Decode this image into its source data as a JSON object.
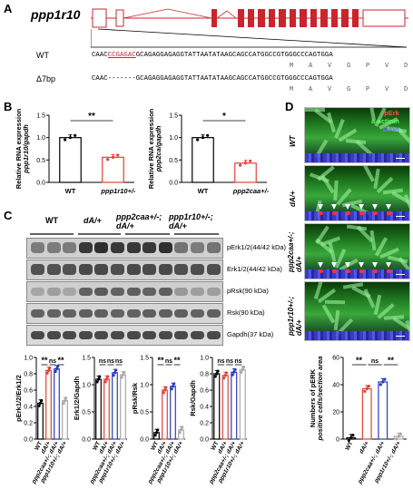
{
  "panels": {
    "a": "A",
    "b": "B",
    "c": "C",
    "d": "D"
  },
  "panel_a": {
    "gene": "ppp1r10",
    "wt_label": "WT",
    "mut_label": "Δ7bp",
    "wt_seq_pre": "CAAC",
    "wt_seq_del": "CCGAGAC",
    "wt_seq_post": "GCAGAGGAGAGGTATTAATATAAGCAGCCATGGCCGTGGGCCCAGTGGA",
    "mut_seq": "CAAC-------GCAGAGGAGAGGTATTAATATAAGCAGCCATGGCCGTGGGCCCAGTGGA",
    "aa": "M    A    V    G    P    V    D"
  },
  "panel_b": {
    "left": {
      "ylabel": "Relative RNA expression",
      "ylabel2": "ppp1r10/gapdh",
      "sig": "**",
      "groups": [
        "WT",
        "ppp1r10+/-"
      ]
    },
    "right": {
      "ylabel": "Relative RNA expression",
      "ylabel2": "ppp2ca/gapdh",
      "sig": "*",
      "groups": [
        "WT",
        "ppp2caa+/-"
      ]
    }
  },
  "panel_c": {
    "genotypes": [
      "WT",
      "dA/+",
      "ppp2caa+/-; dA/+",
      "ppp1r10+/-; dA/+"
    ],
    "blots": [
      "pErk1/2(44/42 kDa)",
      "Erk1/2(44/42 kDa)",
      "pRsk(90 kDa)",
      "Rsk(90 kDa)",
      "Gapdh(37 kDa)"
    ]
  },
  "panel_d": {
    "legend": [
      "pErk",
      "a-actinin",
      "DAPI"
    ],
    "rows": [
      "WT",
      "dA/+",
      "ppp2caa+/-; dA/+",
      "ppp1r10+/-; dA/+"
    ]
  },
  "colors": {
    "wt": "#000000",
    "da": "#e0433a",
    "ppp2caa": "#2b3bb8",
    "ppp1r10": "#a8a8a8",
    "red": "#c9252c"
  },
  "chart_data": [
    {
      "type": "bar",
      "ylabel": "Relative RNA expression ppp1r10/gapdh",
      "categories": [
        "WT",
        "ppp1r10+/-"
      ],
      "values": [
        1.0,
        0.56
      ],
      "ylim": [
        0,
        1.5
      ],
      "yticks": [
        0.0,
        0.5,
        1.0,
        1.5
      ]
    },
    {
      "type": "bar",
      "ylabel": "Relative RNA expression ppp2ca/gapdh",
      "categories": [
        "WT",
        "ppp2caa+/-"
      ],
      "values": [
        1.0,
        0.43
      ],
      "ylim": [
        0,
        1.5
      ],
      "yticks": [
        0.0,
        0.5,
        1.0,
        1.5
      ]
    },
    {
      "type": "bar",
      "ylabel": "pErk1/2/Erk1/2",
      "categories": [
        "WT",
        "dA/+",
        "ppp2caa+/-; dA/+",
        "ppp1r10+/-; dA/+"
      ],
      "values": [
        0.44,
        0.84,
        0.86,
        0.47
      ],
      "ylim": [
        0,
        1.0
      ],
      "yticks": [
        0.0,
        0.2,
        0.4,
        0.6,
        0.8,
        1.0
      ],
      "sig": [
        "**",
        "ns",
        "**"
      ]
    },
    {
      "type": "bar",
      "ylabel": "Erk1/2/Gapdh",
      "categories": [
        "WT",
        "dA/+",
        "ppp2caa+/-; dA/+",
        "ppp1r10+/-; dA/+"
      ],
      "values": [
        1.1,
        1.1,
        1.22,
        1.18
      ],
      "ylim": [
        0,
        1.5
      ],
      "yticks": [
        0.0,
        0.5,
        1.0,
        1.5
      ],
      "sig": [
        "ns",
        "ns",
        "ns"
      ]
    },
    {
      "type": "bar",
      "ylabel": "pRsk/Rsk",
      "categories": [
        "WT",
        "dA/+",
        "ppp2caa+/-; dA/+",
        "ppp1r10+/-; dA/+"
      ],
      "values": [
        0.12,
        0.9,
        0.97,
        0.17
      ],
      "ylim": [
        0,
        1.5
      ],
      "yticks": [
        0.0,
        0.5,
        1.0,
        1.5
      ],
      "sig": [
        "**",
        "ns",
        "**"
      ]
    },
    {
      "type": "bar",
      "ylabel": "Rsk/Gapdh",
      "categories": [
        "WT",
        "dA/+",
        "ppp2caa+/-; dA/+",
        "ppp1r10+/-; dA/+"
      ],
      "values": [
        0.8,
        0.78,
        0.82,
        0.85
      ],
      "ylim": [
        0,
        1.0
      ],
      "yticks": [
        0.0,
        0.2,
        0.4,
        0.6,
        0.8,
        1.0
      ],
      "sig": [
        "ns",
        "ns",
        "ns"
      ]
    },
    {
      "type": "bar",
      "ylabel": "Numbers of pERK positive cells/section area",
      "categories": [
        "WT",
        "dA/+",
        "ppp2caa+/-; dA/+",
        "ppp1r10+/-; dA/+"
      ],
      "values": [
        1,
        37,
        42,
        2
      ],
      "ylim": [
        0,
        60
      ],
      "yticks": [
        0,
        20,
        40,
        60
      ],
      "sig": [
        "**",
        "ns",
        "**"
      ]
    }
  ]
}
